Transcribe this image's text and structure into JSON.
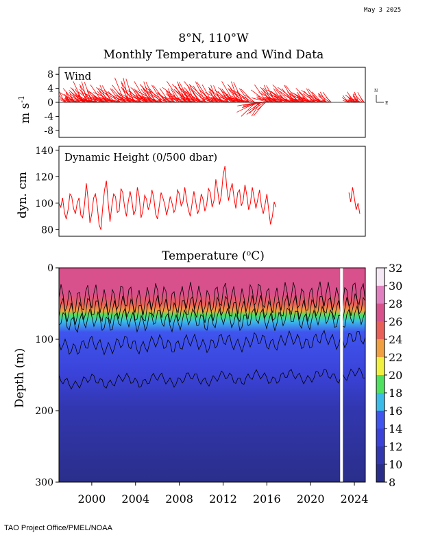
{
  "header": {
    "date": "May  3 2025",
    "title_line1": "8°N, 110°W",
    "title_line2": "Monthly Temperature and Wind Data"
  },
  "footer": {
    "credit": "TAO Project Office/PMEL/NOAA"
  },
  "chart_data": [
    {
      "type": "line",
      "panel": "wind",
      "title": "Wind",
      "ylabel": "m s-1",
      "ylim": [
        -10,
        10
      ],
      "yticks": [
        8,
        4,
        0,
        -4,
        -8
      ],
      "compass": [
        "N",
        "E"
      ],
      "xlim": [
        1997,
        2025
      ],
      "series": [
        {
          "color": "#ff0000",
          "vectors": [
            [
              1997.5,
              -2,
              3
            ],
            [
              1998.5,
              -5,
              4
            ],
            [
              1999.2,
              -4,
              6
            ],
            [
              2000.1,
              -6,
              3
            ],
            [
              2001.0,
              -5,
              5
            ],
            [
              2002.2,
              -7,
              4
            ],
            [
              2003.0,
              -4,
              7
            ],
            [
              2004.1,
              -6,
              4
            ],
            [
              2005.0,
              -5,
              6
            ],
            [
              2006.0,
              -7,
              5
            ],
            [
              2007.1,
              -4,
              4
            ],
            [
              2008.2,
              -6,
              6
            ],
            [
              2009.0,
              -5,
              5
            ],
            [
              2010.0,
              -7,
              6
            ],
            [
              2011.0,
              -4,
              5
            ],
            [
              2012.1,
              -6,
              4
            ],
            [
              2013.0,
              -5,
              6
            ],
            [
              2014.0,
              -7,
              4
            ],
            [
              2015.0,
              -6,
              -4
            ],
            [
              2016.0,
              -5,
              5
            ],
            [
              2017.0,
              -6,
              4
            ],
            [
              2018.1,
              -7,
              5
            ],
            [
              2019.0,
              -5,
              3
            ],
            [
              2020.0,
              -6,
              4
            ],
            [
              2021.0,
              -4,
              3
            ],
            [
              2023.4,
              -2,
              2
            ],
            [
              2024.0,
              -3,
              3
            ]
          ]
        }
      ]
    },
    {
      "type": "line",
      "panel": "dynamic_height",
      "title": "Dynamic Height (0/500 dbar)",
      "ylabel": "dyn. cm",
      "ylim": [
        75,
        143
      ],
      "yticks": [
        140,
        120,
        100,
        80
      ],
      "xlim": [
        1997,
        2025
      ],
      "series": [
        {
          "color": "#ff0000",
          "x_start": 1997.0,
          "step": 0.1667,
          "values": [
            100,
            97,
            104,
            93,
            88,
            95,
            107,
            105,
            96,
            92,
            100,
            104,
            91,
            89,
            99,
            115,
            103,
            85,
            92,
            104,
            107,
            98,
            84,
            80,
            97,
            110,
            117,
            100,
            86,
            98,
            107,
            105,
            93,
            94,
            111,
            108,
            97,
            90,
            101,
            109,
            102,
            91,
            95,
            112,
            105,
            89,
            94,
            106,
            103,
            95,
            100,
            110,
            104,
            92,
            88,
            98,
            108,
            104,
            99,
            91,
            97,
            105,
            100,
            93,
            96,
            110,
            107,
            98,
            101,
            112,
            102,
            95,
            90,
            100,
            109,
            101,
            92,
            96,
            107,
            103,
            94,
            99,
            111,
            108,
            97,
            102,
            118,
            110,
            99,
            106,
            121,
            128,
            112,
            102,
            110,
            115,
            104,
            96,
            108,
            110,
            98,
            102,
            114,
            106,
            95,
            100,
            112,
            104,
            96,
            103,
            110,
            98,
            92,
            99,
            107,
            95,
            84,
            90,
            101,
            97
          ]
        },
        {
          "color": "#ff0000",
          "x_start": 2023.5,
          "step": 0.1667,
          "values": [
            108,
            101,
            112,
            104,
            95,
            100,
            92
          ]
        }
      ]
    },
    {
      "type": "heatmap",
      "panel": "temperature",
      "title": "Temperature (°C)",
      "ylabel": "Depth (m)",
      "ylim": [
        300,
        0
      ],
      "yticks": [
        0,
        100,
        200,
        300
      ],
      "xlim": [
        1997,
        2025
      ],
      "xticks": [
        2000,
        2004,
        2008,
        2012,
        2016,
        2020,
        2024
      ],
      "colorbar": {
        "ticks": [
          8,
          10,
          12,
          14,
          16,
          18,
          20,
          22,
          24,
          26,
          28,
          30,
          32
        ],
        "colors": [
          "#1c1c5c",
          "#2a2e8a",
          "#3237b0",
          "#3a42d8",
          "#3f55ee",
          "#3bbce8",
          "#4fe060",
          "#f0f040",
          "#f0a040",
          "#e86058",
          "#d8508c",
          "#e080c0",
          "#f4e8f4"
        ]
      },
      "gaps": [
        [
          2022.7,
          2022.95
        ]
      ],
      "isotherms_m": {
        "28": [
          45,
          40
        ],
        "24": [
          60,
          55
        ],
        "20": [
          75,
          70
        ],
        "14": [
          110,
          100
        ],
        "12": [
          160,
          150
        ]
      }
    }
  ]
}
